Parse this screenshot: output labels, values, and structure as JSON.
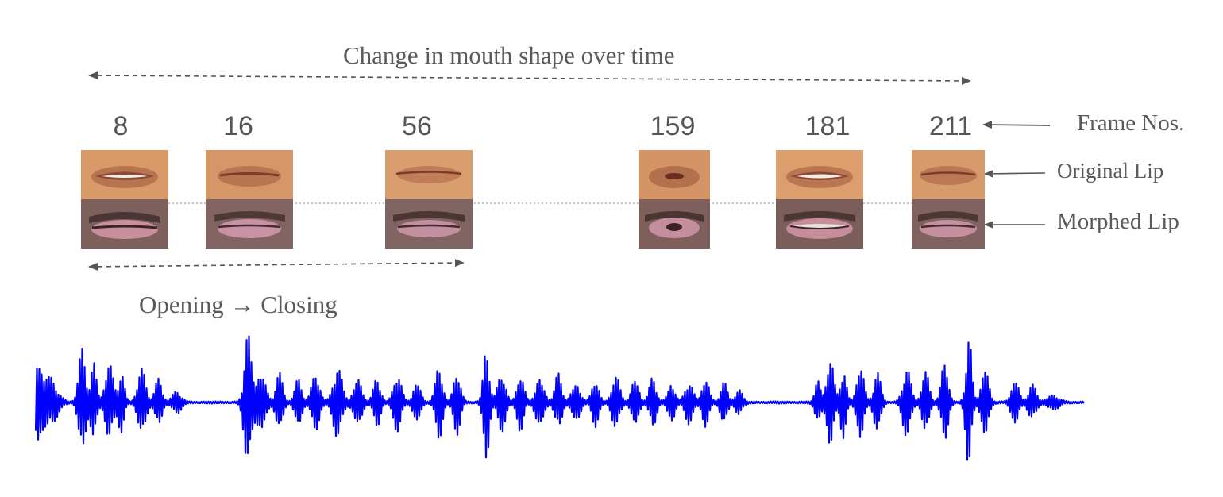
{
  "title": "Change in mouth shape over time",
  "span_label": "Opening → Closing",
  "row_labels": {
    "frame_nos": "Frame Nos.",
    "original": "Original Lip",
    "morphed": "Morphed Lip"
  },
  "frames": [
    {
      "number": "8"
    },
    {
      "number": "16"
    },
    {
      "number": "56"
    },
    {
      "number": "159"
    },
    {
      "number": "181"
    },
    {
      "number": "211"
    }
  ],
  "colors": {
    "waveform": "#0000ff",
    "text": "#5a5a5a",
    "arrow": "#555555",
    "original_skin": "#d89a6a",
    "morphed_skin": "#8a6a66"
  }
}
